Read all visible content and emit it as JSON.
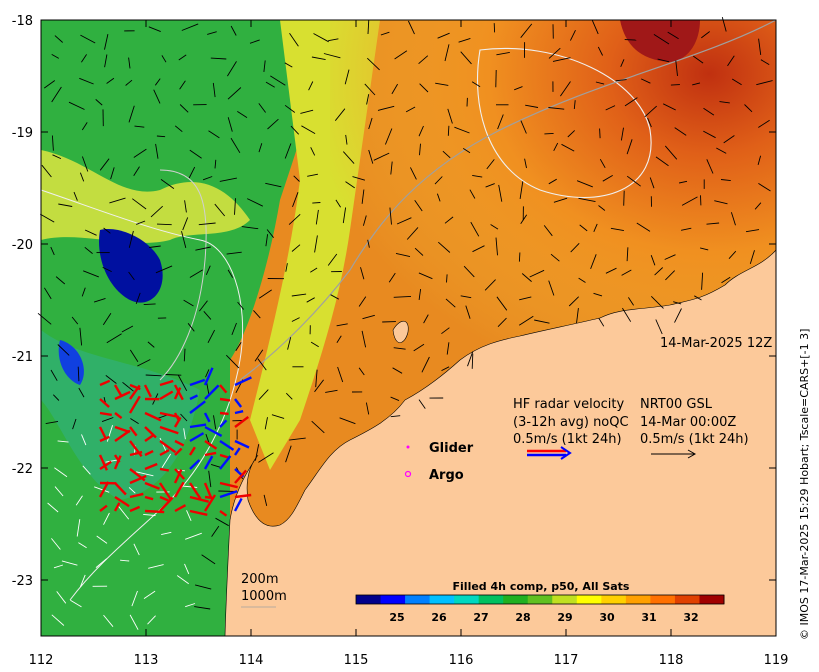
{
  "map": {
    "lon_ticks": [
      "112",
      "113",
      "114",
      "115",
      "116",
      "117",
      "118",
      "119"
    ],
    "lat_ticks": [
      "-18",
      "-19",
      "-20",
      "-21",
      "-22",
      "-23"
    ],
    "lon_range": [
      112,
      119
    ],
    "lat_range": [
      -23.5,
      -18
    ],
    "land_color": "#fcc99a",
    "date_label": "14-Mar-2025 12Z",
    "hf_radar": {
      "line1": "HF radar velocity",
      "line2": "(3-12h avg) noQC",
      "line3": "0.5m/s (1kt 24h)"
    },
    "nrt": {
      "line1": "NRT00 GSL",
      "line2": "14-Mar 00:00Z",
      "line3": "0.5m/s (1kt 24h)"
    },
    "legend": {
      "glider_label": "Glider",
      "glider_color": "#ff00ff",
      "argo_label": "Argo",
      "argo_color": "#ff00ff"
    },
    "isobaths": [
      "200m",
      "1000m"
    ],
    "colorbar": {
      "title": "Filled 4h comp, p50, All Sats",
      "ticks": [
        "25",
        "26",
        "27",
        "28",
        "29",
        "30",
        "31",
        "32"
      ],
      "range": [
        24.1,
        32.9
      ],
      "colors": [
        "#00008b",
        "#0000ff",
        "#0080ff",
        "#00c0ff",
        "#00d8c0",
        "#00c060",
        "#20b020",
        "#60c020",
        "#c0e020",
        "#ffff00",
        "#ffd000",
        "#ffa000",
        "#ff7000",
        "#e04000",
        "#a00000"
      ]
    },
    "credit": "© IMOS 17-Mar-2025 15:29 Hobart; Tscale=CARS+[-1 3]"
  }
}
